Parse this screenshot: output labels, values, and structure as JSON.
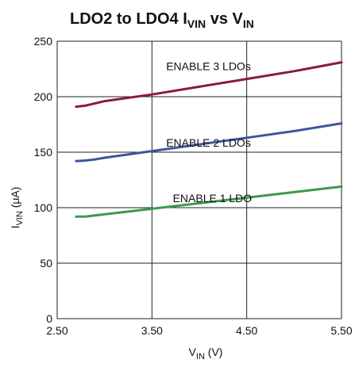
{
  "chart_data": {
    "type": "line",
    "title": {
      "main": "LDO2 to LDO4 I",
      "main_sub": "VIN",
      "mid": " vs V",
      "mid_sub": "IN"
    },
    "xlabel": {
      "main": "V",
      "sub": "IN",
      "unit": " (V)"
    },
    "ylabel": {
      "main": "I",
      "sub": "VIN",
      "unit": " (μA)"
    },
    "xlim": [
      2.5,
      5.5
    ],
    "ylim": [
      0,
      250
    ],
    "x_ticks": [
      "2.50",
      "3.50",
      "4.50",
      "5.50"
    ],
    "y_ticks": [
      "0",
      "50",
      "100",
      "150",
      "200",
      "250"
    ],
    "grid": true,
    "series": [
      {
        "name": "ENABLE 3 LDOs",
        "color": "#8b1a3a",
        "x": [
          2.7,
          2.8,
          2.9,
          3.0,
          3.5,
          4.0,
          4.5,
          5.0,
          5.5
        ],
        "y": [
          191,
          192,
          194,
          196,
          202,
          209,
          216,
          223,
          231
        ]
      },
      {
        "name": "ENABLE 2 LDOs",
        "color": "#3d55a0",
        "x": [
          2.7,
          2.8,
          2.9,
          3.0,
          3.5,
          4.0,
          4.5,
          5.0,
          5.5
        ],
        "y": [
          142,
          142.5,
          143.5,
          145,
          151,
          157,
          163,
          169,
          176
        ]
      },
      {
        "name": "ENABLE 1 LDO",
        "color": "#3a9a4a",
        "x": [
          2.7,
          2.8,
          2.9,
          3.0,
          3.5,
          4.0,
          4.5,
          5.0,
          5.5
        ],
        "y": [
          92,
          92,
          93,
          94,
          99,
          104,
          109,
          114,
          119
        ]
      }
    ],
    "annotations": [
      {
        "text": "ENABLE 3 LDOs",
        "x": 3.65,
        "y": 224
      },
      {
        "text": "ENABLE 2 LDOs",
        "x": 3.65,
        "y": 155
      },
      {
        "text": "ENABLE 1 LDO",
        "x": 3.72,
        "y": 105
      }
    ]
  }
}
